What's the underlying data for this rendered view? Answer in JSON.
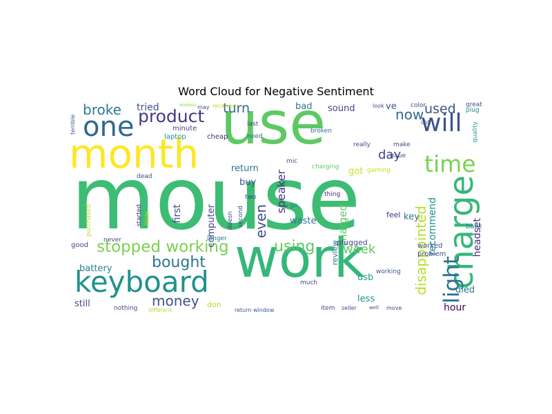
{
  "chart_data": {
    "type": "wordcloud",
    "title": "Word Cloud for Negative Sentiment",
    "colormap": "viridis",
    "words": [
      {
        "text": "mouse",
        "weight": 100,
        "color": "#3dbc74"
      },
      {
        "text": "use",
        "weight": 68,
        "color": "#5ec962"
      },
      {
        "text": "work",
        "weight": 62,
        "color": "#35b779"
      },
      {
        "text": "month",
        "weight": 46,
        "color": "#fde725"
      },
      {
        "text": "charge",
        "weight": 38,
        "color": "#35b779"
      },
      {
        "text": "keyboard",
        "weight": 33,
        "color": "#21918c"
      },
      {
        "text": "one",
        "weight": 31,
        "color": "#31688e"
      },
      {
        "text": "will",
        "weight": 29,
        "color": "#3b528b"
      },
      {
        "text": "time",
        "weight": 26,
        "color": "#7ad151"
      },
      {
        "text": "light",
        "weight": 24,
        "color": "#2c728e"
      },
      {
        "text": "product",
        "weight": 20,
        "color": "#443983"
      },
      {
        "text": "stopped working",
        "weight": 19,
        "color": "#7ad151"
      },
      {
        "text": "using",
        "weight": 17,
        "color": "#5ec962"
      },
      {
        "text": "bought",
        "weight": 17,
        "color": "#2a788e"
      },
      {
        "text": "money",
        "weight": 16,
        "color": "#3b528b"
      },
      {
        "text": "broke",
        "weight": 16,
        "color": "#2a788e"
      },
      {
        "text": "disappointed",
        "weight": 16,
        "color": "#b5de2b"
      },
      {
        "text": "even",
        "weight": 16,
        "color": "#3b528b"
      },
      {
        "text": "now",
        "weight": 16,
        "color": "#31688e"
      },
      {
        "text": "used",
        "weight": 15,
        "color": "#3b528b"
      },
      {
        "text": "turn",
        "weight": 15,
        "color": "#31688e"
      },
      {
        "text": "week",
        "weight": 14,
        "color": "#5ec962"
      },
      {
        "text": "day",
        "weight": 14,
        "color": "#414487"
      },
      {
        "text": "speaker",
        "weight": 13,
        "color": "#46337e"
      },
      {
        "text": "charged",
        "weight": 12,
        "color": "#5ec962"
      },
      {
        "text": "recommend",
        "weight": 11,
        "color": "#21918c"
      },
      {
        "text": "headset",
        "weight": 11,
        "color": "#472d7b"
      },
      {
        "text": "hour",
        "weight": 11,
        "color": "#440154"
      },
      {
        "text": "tried",
        "weight": 11,
        "color": "#3b528b"
      },
      {
        "text": "first",
        "weight": 11,
        "color": "#3e4989"
      },
      {
        "text": "still",
        "weight": 10,
        "color": "#3e4989"
      },
      {
        "text": "battery",
        "weight": 10,
        "color": "#26828e"
      },
      {
        "text": "buy",
        "weight": 10,
        "color": "#39568c"
      },
      {
        "text": "return",
        "weight": 10,
        "color": "#2c728e"
      },
      {
        "text": "computer",
        "weight": 10,
        "color": "#3e4989"
      },
      {
        "text": "waste",
        "weight": 10,
        "color": "#2a788e"
      },
      {
        "text": "key",
        "weight": 10,
        "color": "#2c728e"
      },
      {
        "text": "got",
        "weight": 10,
        "color": "#cae11f"
      },
      {
        "text": "bad",
        "weight": 10,
        "color": "#2a788e"
      },
      {
        "text": "sound",
        "weight": 10,
        "color": "#414487"
      },
      {
        "text": "usb",
        "weight": 10,
        "color": "#1f9e89"
      },
      {
        "text": "less",
        "weight": 10,
        "color": "#21918c"
      },
      {
        "text": "died",
        "weight": 10,
        "color": "#2a788e"
      },
      {
        "text": "ve",
        "weight": 10,
        "color": "#3b528b"
      },
      {
        "text": "review",
        "weight": 8,
        "color": "#2c728e"
      },
      {
        "text": "don",
        "weight": 8,
        "color": "#b5de2b"
      },
      {
        "text": "plugged",
        "weight": 8,
        "color": "#3e4989"
      },
      {
        "text": "feel",
        "weight": 8,
        "color": "#472c7a"
      },
      {
        "text": "worked",
        "weight": 7,
        "color": "#3b528b"
      },
      {
        "text": "problem",
        "weight": 7,
        "color": "#3e4989"
      },
      {
        "text": "good",
        "weight": 7,
        "color": "#3e4989"
      },
      {
        "text": "back",
        "weight": 7,
        "color": "#2a788e"
      },
      {
        "text": "laptop",
        "weight": 7,
        "color": "#21918c"
      },
      {
        "text": "cheap",
        "weight": 7,
        "color": "#482878"
      },
      {
        "text": "minute",
        "weight": 7,
        "color": "#414487"
      },
      {
        "text": "nothing",
        "weight": 6,
        "color": "#3e4989"
      },
      {
        "text": "longer",
        "weight": 6,
        "color": "#2c728e"
      },
      {
        "text": "color",
        "weight": 6,
        "color": "#3b528b"
      },
      {
        "text": "plug",
        "weight": 6,
        "color": "#26828e"
      },
      {
        "text": "great",
        "weight": 6,
        "color": "#3e4989"
      },
      {
        "text": "quality",
        "weight": 6,
        "color": "#1f9e89"
      },
      {
        "text": "make",
        "weight": 6,
        "color": "#3e4989"
      },
      {
        "text": "issue",
        "weight": 6,
        "color": "#3b528b"
      },
      {
        "text": "gaming",
        "weight": 6,
        "color": "#c8e020"
      },
      {
        "text": "thing",
        "weight": 6,
        "color": "#482878"
      },
      {
        "text": "go",
        "weight": 6,
        "color": "#26828e"
      },
      {
        "text": "charging",
        "weight": 6,
        "color": "#5ec962"
      },
      {
        "text": "broken",
        "weight": 6,
        "color": "#31688e"
      },
      {
        "text": "really",
        "weight": 6,
        "color": "#3e4989"
      },
      {
        "text": "need",
        "weight": 6,
        "color": "#31688e"
      },
      {
        "text": "last",
        "weight": 6,
        "color": "#3e4989"
      },
      {
        "text": "mic",
        "weight": 6,
        "color": "#3b528b"
      },
      {
        "text": "started",
        "weight": 6,
        "color": "#482878"
      },
      {
        "text": "little",
        "weight": 6,
        "color": "#b5de2b"
      },
      {
        "text": "purchased",
        "weight": 6,
        "color": "#b5de2b"
      },
      {
        "text": "dead",
        "weight": 6,
        "color": "#3e4989"
      },
      {
        "text": "never",
        "weight": 6,
        "color": "#3e4989"
      },
      {
        "text": "second",
        "weight": 6,
        "color": "#3b528b"
      },
      {
        "text": "two",
        "weight": 6,
        "color": "#3e4989"
      },
      {
        "text": "doesn",
        "weight": 6,
        "color": "#3e4989"
      },
      {
        "text": "much",
        "weight": 6,
        "color": "#3e4989"
      },
      {
        "text": "working",
        "weight": 6,
        "color": "#3b528b"
      },
      {
        "text": "item",
        "weight": 6,
        "color": "#3e4989"
      },
      {
        "text": "seller",
        "weight": 5,
        "color": "#3e4989"
      },
      {
        "text": "move",
        "weight": 5,
        "color": "#3e4989"
      },
      {
        "text": "return window",
        "weight": 5,
        "color": "#3b528b"
      },
      {
        "text": "different",
        "weight": 5,
        "color": "#b5de2b"
      },
      {
        "text": "didn",
        "weight": 5,
        "color": "#3e4989"
      },
      {
        "text": "look",
        "weight": 5,
        "color": "#3e4989"
      },
      {
        "text": "may",
        "weight": 5,
        "color": "#3e4989"
      },
      {
        "text": "received",
        "weight": 5,
        "color": "#b5de2b"
      },
      {
        "text": "terrible",
        "weight": 5,
        "color": "#3b528b"
      },
      {
        "text": "wireless",
        "weight": 4,
        "color": "#8fd744"
      },
      {
        "text": "well",
        "weight": 4,
        "color": "#3e4989"
      }
    ]
  }
}
